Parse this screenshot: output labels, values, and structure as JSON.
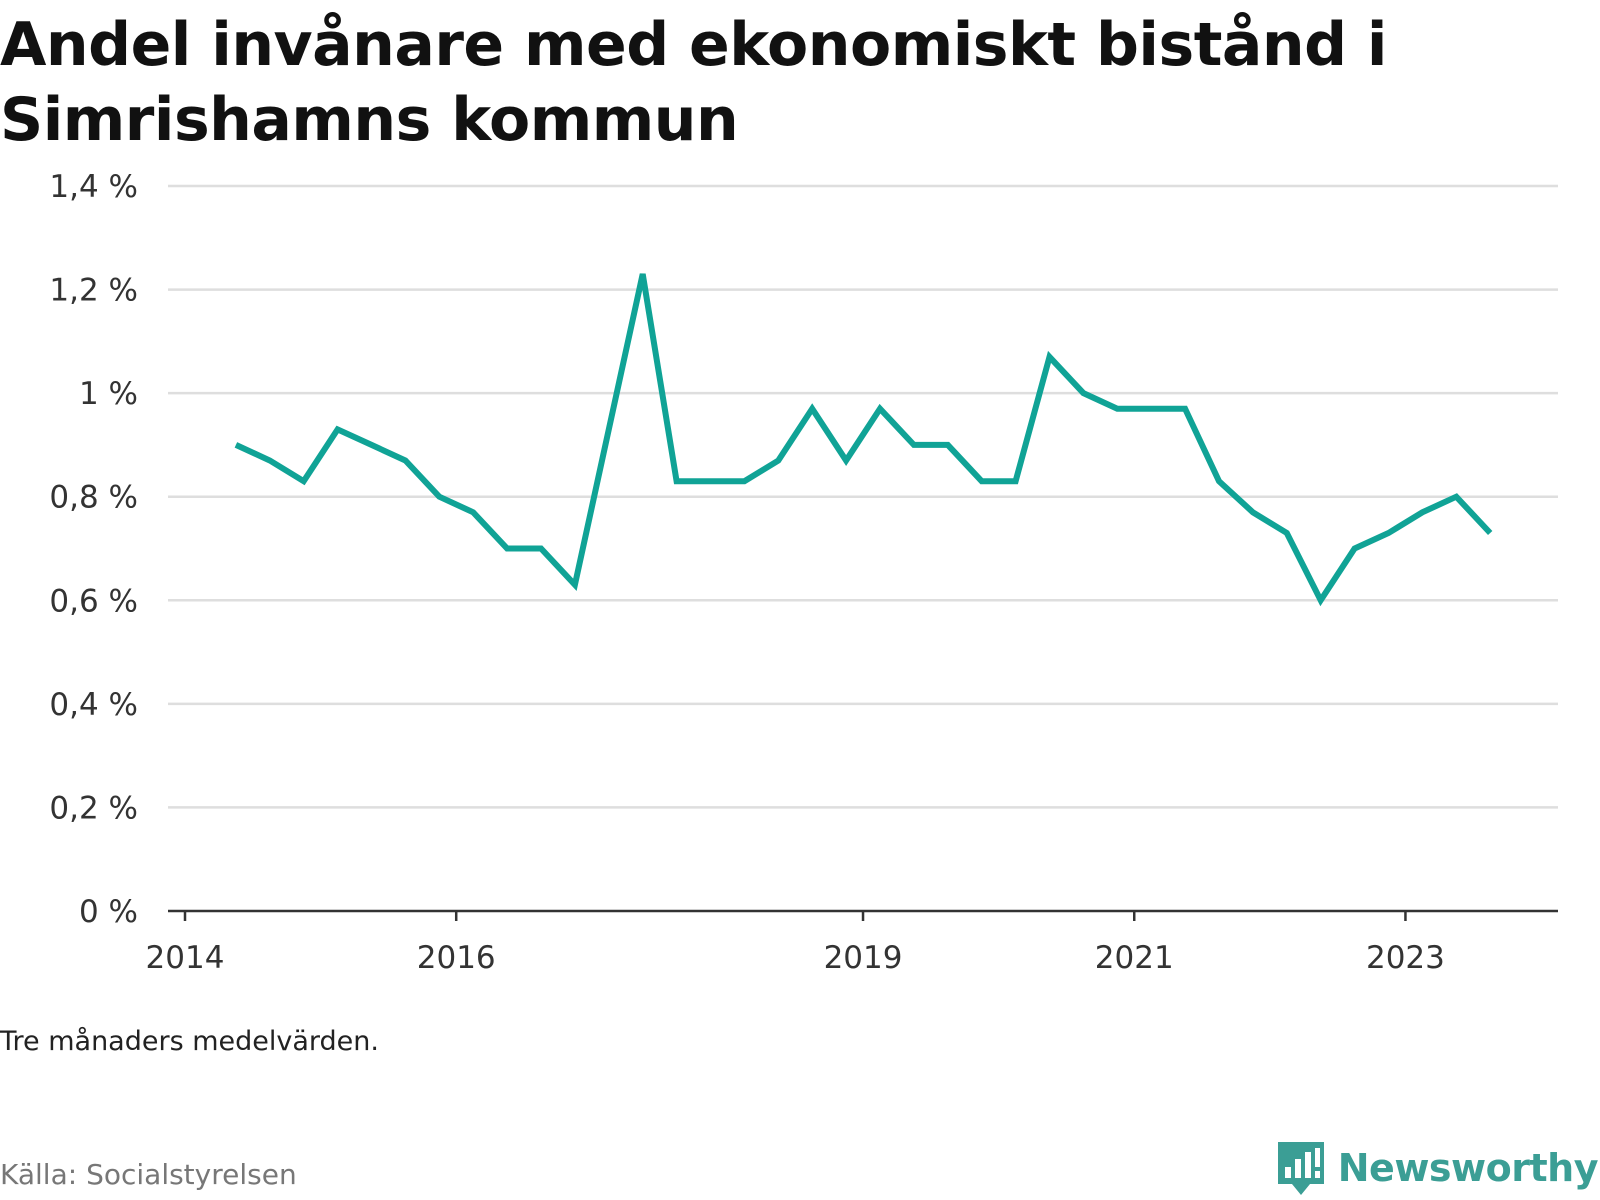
{
  "title": "Andel invånare med ekonomiskt bistånd i Simrishamns kommun",
  "note": "Tre månaders medelvärden.",
  "source": "Källa: Socialstyrelsen",
  "brand": {
    "name": "Newsworthy",
    "logo_icon": "bar-chart-speech-bubble-icon",
    "color": "#3b9e95"
  },
  "chart_data": {
    "type": "line",
    "x_unit": "quarter",
    "x": [
      "2014-Q2",
      "2014-Q3",
      "2014-Q4",
      "2015-Q1",
      "2015-Q2",
      "2015-Q3",
      "2015-Q4",
      "2016-Q1",
      "2016-Q2",
      "2016-Q3",
      "2016-Q4",
      "2017-Q1",
      "2017-Q2",
      "2017-Q3",
      "2017-Q4",
      "2018-Q1",
      "2018-Q2",
      "2018-Q3",
      "2018-Q4",
      "2019-Q1",
      "2019-Q2",
      "2019-Q3",
      "2019-Q4",
      "2020-Q1",
      "2020-Q2",
      "2020-Q3",
      "2020-Q4",
      "2021-Q1",
      "2021-Q2",
      "2021-Q3",
      "2021-Q4",
      "2022-Q1",
      "2022-Q2",
      "2022-Q3",
      "2022-Q4",
      "2023-Q1",
      "2023-Q2",
      "2023-Q3"
    ],
    "series": [
      {
        "color": "#10a396",
        "values": [
          0.9,
          0.87,
          0.83,
          0.93,
          0.9,
          0.87,
          0.8,
          0.77,
          0.7,
          0.7,
          0.63,
          0.93,
          1.23,
          0.83,
          0.83,
          0.83,
          0.87,
          0.97,
          0.87,
          0.97,
          0.9,
          0.9,
          0.83,
          0.83,
          1.07,
          1.0,
          0.97,
          0.97,
          0.97,
          0.83,
          0.77,
          0.73,
          0.6,
          0.7,
          0.73,
          0.77,
          0.8,
          0.73
        ]
      }
    ],
    "x_ticks": [
      "2014",
      "2016",
      "2019",
      "2021",
      "2023"
    ],
    "y_ticks": [
      "0 %",
      "0,2 %",
      "0,4 %",
      "0,6 %",
      "0,8 %",
      "1 %",
      "1,2 %",
      "1,4 %"
    ],
    "ylim": [
      0,
      1.4
    ],
    "grid": true,
    "legend": "none"
  }
}
